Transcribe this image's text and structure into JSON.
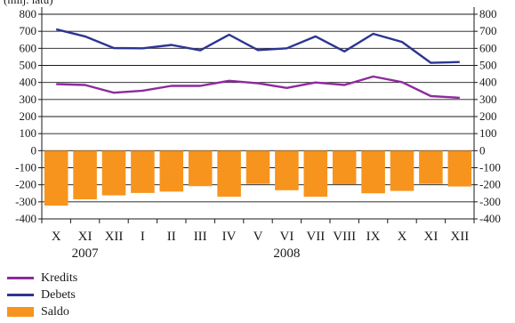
{
  "unit_label": "(milj. latu)",
  "colors": {
    "kredits": "#8e2a9e",
    "debets": "#2c3592",
    "saldo": "#f7941d",
    "axis": "#1a1a1a"
  },
  "legend": {
    "kredits": "Kredits",
    "debets": "Debets",
    "saldo": "Saldo"
  },
  "chart_data": {
    "type": "bar",
    "categories": [
      "X",
      "XI",
      "XII",
      "I",
      "II",
      "III",
      "IV",
      "V",
      "VI",
      "VII",
      "VIII",
      "IX",
      "X",
      "XI",
      "XII"
    ],
    "years": [
      {
        "label": "2007",
        "index": 1
      },
      {
        "label": "2008",
        "index": 8
      }
    ],
    "ylim": [
      -400,
      800
    ],
    "yticks": [
      -400,
      -300,
      -200,
      -100,
      0,
      100,
      200,
      300,
      400,
      500,
      600,
      700,
      800
    ],
    "grid": true,
    "legend_position": "bottom-left",
    "series": [
      {
        "name": "Kredits",
        "type": "line",
        "values": [
          390,
          385,
          340,
          352,
          380,
          380,
          410,
          395,
          368,
          400,
          385,
          435,
          402,
          320,
          310
        ]
      },
      {
        "name": "Debets",
        "type": "line",
        "values": [
          712,
          670,
          602,
          600,
          620,
          588,
          680,
          590,
          600,
          670,
          582,
          685,
          638,
          515,
          520
        ]
      },
      {
        "name": "Saldo",
        "type": "bar",
        "values": [
          -322,
          -285,
          -262,
          -248,
          -240,
          -208,
          -270,
          -195,
          -232,
          -270,
          -197,
          -250,
          -236,
          -195,
          -210
        ]
      }
    ]
  }
}
